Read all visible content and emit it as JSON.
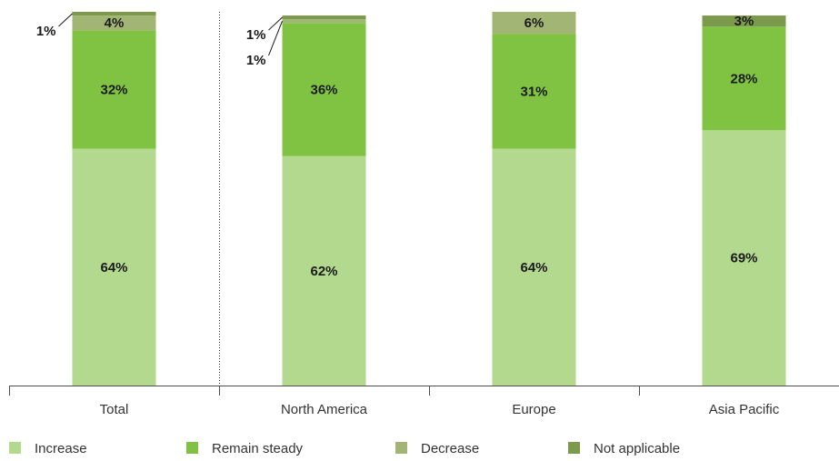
{
  "chart_data": {
    "type": "bar",
    "stacked": true,
    "categories": [
      "Total",
      "North America",
      "Europe",
      "Asia Pacific"
    ],
    "unit": "%",
    "ylim": [
      0,
      101
    ],
    "grid": false,
    "legend_position": "bottom",
    "series": [
      {
        "name": "Increase",
        "color": "#b3d98f",
        "values": [
          64,
          62,
          64,
          69
        ]
      },
      {
        "name": "Remain steady",
        "color": "#80c342",
        "values": [
          32,
          36,
          31,
          28
        ]
      },
      {
        "name": "Decrease",
        "color": "#a3b574",
        "values": [
          4,
          1,
          6,
          null
        ]
      },
      {
        "name": "Not applicable",
        "color": "#7b9a4b",
        "values": [
          1,
          1,
          null,
          3
        ]
      }
    ]
  }
}
